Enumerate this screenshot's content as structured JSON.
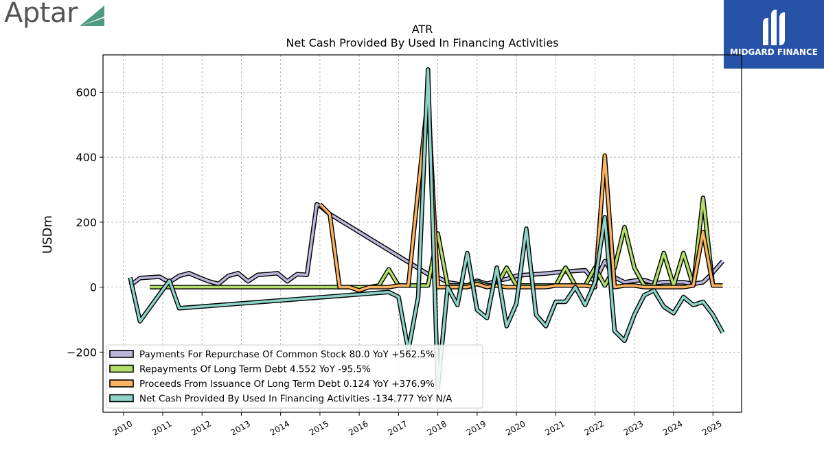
{
  "header": {
    "company_logo_text": "Aptar",
    "brand_logo_text": "MIDGARD FINANCE"
  },
  "colors": {
    "repurchase": "#bcb8dc",
    "repayments": "#b3de69",
    "proceeds": "#fdb462",
    "net": "#8dd3c7",
    "brand": "#2653a8",
    "aptar_mark": "#4f9a80"
  },
  "chart_data": {
    "type": "line",
    "title": "ATR",
    "subtitle": "Net Cash Provided By Used In Financing Activities",
    "ylabel": "USDm",
    "xlabel": "",
    "xlim": [
      2009.48,
      2025.73
    ],
    "ylim": [
      -385,
      715
    ],
    "yticks": [
      -200,
      0,
      200,
      400,
      600
    ],
    "ytick_labels": [
      "−200",
      "0",
      "200",
      "400",
      "600"
    ],
    "xticks": [
      2010,
      2011,
      2012,
      2013,
      2014,
      2015,
      2016,
      2017,
      2018,
      2019,
      2020,
      2021,
      2022,
      2023,
      2024,
      2025
    ],
    "xtick_labels": [
      "2010",
      "2011",
      "2012",
      "2013",
      "2014",
      "2015",
      "2016",
      "2017",
      "2018",
      "2019",
      "2020",
      "2021",
      "2022",
      "2023",
      "2024",
      "2025"
    ],
    "grid": true,
    "legend_position": "lower-left",
    "series": [
      {
        "name": "Payments For Repurchase Of Common Stock  80.0 YoY +562.5%",
        "color": "#bcb8dc",
        "x": [
          2010.17,
          2010.42,
          2010.67,
          2010.92,
          2011.17,
          2011.42,
          2011.67,
          2011.92,
          2012.17,
          2012.42,
          2012.67,
          2012.92,
          2013.17,
          2013.42,
          2013.67,
          2013.92,
          2014.17,
          2014.42,
          2014.67,
          2014.92,
          2015.0,
          2015.25,
          2017.75,
          2018.0,
          2018.25,
          2018.5,
          2018.75,
          2019.0,
          2019.25,
          2019.5,
          2019.75,
          2020.0,
          2020.25,
          2020.5,
          2020.75,
          2021.0,
          2021.25,
          2021.5,
          2021.75,
          2022.0,
          2022.25,
          2022.5,
          2022.75,
          2023.0,
          2023.25,
          2023.5,
          2023.75,
          2024.0,
          2024.25,
          2024.5,
          2024.75,
          2025.0,
          2025.25
        ],
        "y": [
          5,
          28,
          30,
          32,
          15,
          35,
          43,
          30,
          18,
          10,
          35,
          43,
          18,
          38,
          40,
          43,
          18,
          40,
          38,
          255,
          250,
          225,
          40,
          30,
          15,
          10,
          5,
          20,
          10,
          20,
          25,
          35,
          38,
          40,
          42,
          45,
          48,
          50,
          52,
          15,
          80,
          30,
          15,
          20,
          22,
          12,
          15,
          15,
          15,
          10,
          15,
          45,
          80
        ]
      },
      {
        "name": "Repayments Of Long Term Debt  4.552 YoY -95.5%",
        "color": "#b3de69",
        "x": [
          2010.67,
          2011.0,
          2016.0,
          2016.25,
          2016.5,
          2016.75,
          2017.0,
          2017.25,
          2017.5,
          2017.75,
          2018.0,
          2018.25,
          2018.5,
          2018.75,
          2019.0,
          2019.25,
          2019.5,
          2019.75,
          2020.0,
          2020.25,
          2020.5,
          2020.75,
          2021.0,
          2021.25,
          2021.5,
          2021.75,
          2022.0,
          2022.25,
          2022.5,
          2022.75,
          2023.0,
          2023.25,
          2023.5,
          2023.75,
          2024.0,
          2024.25,
          2024.5,
          2024.75,
          2025.0,
          2025.25
        ],
        "y": [
          0,
          0,
          0,
          0,
          5,
          55,
          5,
          5,
          5,
          5,
          165,
          5,
          5,
          5,
          15,
          5,
          5,
          60,
          5,
          5,
          5,
          5,
          5,
          60,
          5,
          5,
          60,
          5,
          60,
          185,
          60,
          5,
          5,
          105,
          5,
          105,
          5,
          275,
          5,
          5
        ]
      },
      {
        "name": "Proceeds From Issuance Of Long Term Debt  0.124 YoY +376.9%",
        "color": "#fdb462",
        "x": [
          2015.0,
          2015.25,
          2015.5,
          2015.75,
          2016.0,
          2016.25,
          2016.5,
          2016.75,
          2017.0,
          2017.25,
          2017.5,
          2017.75,
          2018.0,
          2018.25,
          2018.5,
          2018.75,
          2019.0,
          2019.25,
          2019.5,
          2019.75,
          2020.0,
          2020.25,
          2020.5,
          2020.75,
          2021.0,
          2021.25,
          2021.5,
          2021.75,
          2022.0,
          2022.25,
          2022.5,
          2022.75,
          2023.0,
          2023.25,
          2023.5,
          2023.75,
          2024.0,
          2024.25,
          2024.5,
          2024.75,
          2025.0,
          2025.25
        ],
        "y": [
          255,
          225,
          0,
          0,
          -10,
          0,
          0,
          0,
          5,
          5,
          300,
          590,
          0,
          0,
          0,
          0,
          10,
          0,
          5,
          0,
          0,
          0,
          0,
          0,
          5,
          5,
          5,
          5,
          0,
          405,
          0,
          5,
          5,
          0,
          0,
          0,
          0,
          0,
          5,
          170,
          5,
          5
        ]
      },
      {
        "name": "Net Cash Provided By Used In Financing Activities  -134.777 YoY N/A",
        "color": "#8dd3c7",
        "x": [
          2010.17,
          2010.42,
          2011.17,
          2011.42,
          2016.75,
          2017.0,
          2017.25,
          2017.5,
          2017.75,
          2018.0,
          2018.25,
          2018.5,
          2018.75,
          2019.0,
          2019.25,
          2019.5,
          2019.75,
          2020.0,
          2020.25,
          2020.5,
          2020.75,
          2021.0,
          2021.25,
          2021.5,
          2021.75,
          2022.0,
          2022.25,
          2022.5,
          2022.75,
          2023.0,
          2023.25,
          2023.5,
          2023.75,
          2024.0,
          2024.25,
          2024.5,
          2024.75,
          2025.0,
          2025.25
        ],
        "y": [
          30,
          -105,
          20,
          -65,
          -15,
          -30,
          -195,
          -30,
          670,
          -310,
          0,
          -55,
          105,
          -70,
          -95,
          60,
          -120,
          -50,
          180,
          -85,
          -120,
          -45,
          -45,
          0,
          -55,
          15,
          215,
          -135,
          -165,
          -85,
          -25,
          -10,
          -60,
          -80,
          -30,
          -55,
          -45,
          -85,
          -140
        ]
      }
    ]
  }
}
